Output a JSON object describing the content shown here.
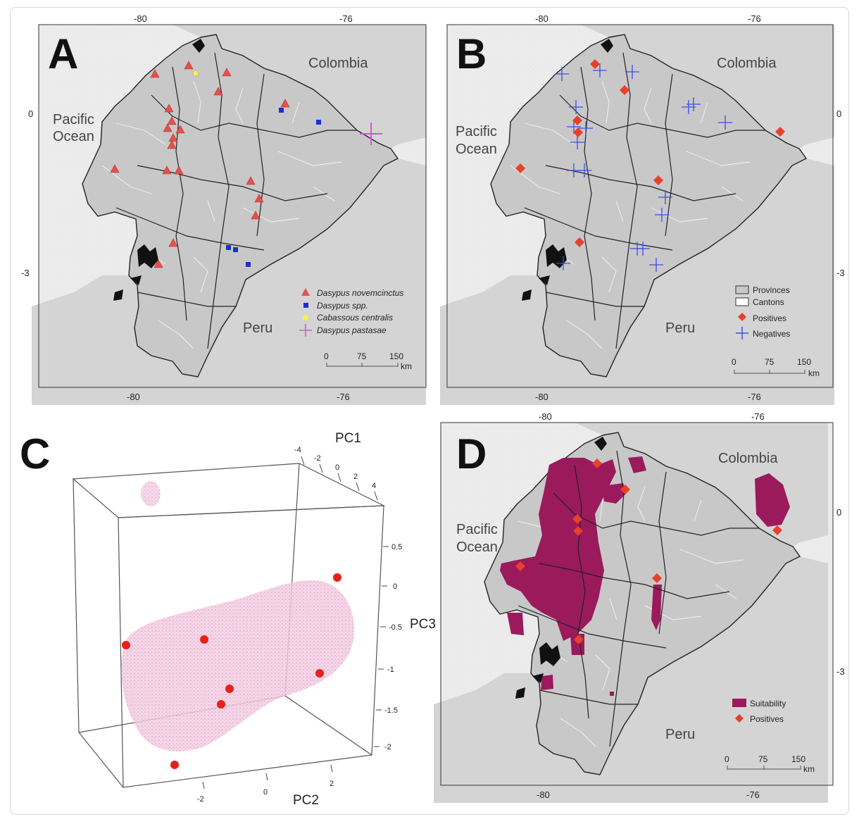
{
  "panels": {
    "A": {
      "letter": "A",
      "ticks_top": [
        "-80",
        "-76"
      ],
      "ticks_bottom": [
        "-80",
        "-76"
      ],
      "ticks_right": [
        "0",
        "-3"
      ],
      "places": {
        "colombia": "Colombia",
        "pacific1": "Pacific",
        "pacific2": "Ocean",
        "peru": "Peru"
      },
      "legend": [
        {
          "label": "Dasypus novemcinctus",
          "color": "#e8504a",
          "symbol": "triangle"
        },
        {
          "label": "Dasypus spp.",
          "color": "#1a2fd8",
          "symbol": "square"
        },
        {
          "label": "Cabassous centralis",
          "color": "#f2f24a",
          "symbol": "circle"
        },
        {
          "label": "Dasypus pastasae",
          "color": "#d455d4",
          "symbol": "plus"
        }
      ],
      "scale": {
        "labels": [
          "0",
          "75",
          "150"
        ],
        "unit": "km"
      }
    },
    "B": {
      "letter": "B",
      "ticks_top": [
        "-80",
        "-76"
      ],
      "ticks_bottom": [
        "-80",
        "-76"
      ],
      "ticks_right": [
        "0",
        "-3"
      ],
      "places": {
        "colombia": "Colombia",
        "pacific1": "Pacific",
        "pacific2": "Ocean",
        "peru": "Peru"
      },
      "legend": [
        {
          "label": "Provinces",
          "symbol": "box-gray"
        },
        {
          "label": "Cantons",
          "symbol": "box-white"
        },
        {
          "label": "Positives",
          "color": "#e8402a",
          "symbol": "diamond"
        },
        {
          "label": "Negatives",
          "color": "#3a4ee8",
          "symbol": "plus"
        }
      ],
      "scale": {
        "labels": [
          "0",
          "75",
          "150"
        ],
        "unit": "km"
      }
    },
    "C": {
      "letter": "C",
      "pc1": "PC1",
      "pc2": "PC2",
      "pc3": "PC3",
      "pc1_ticks": [
        "-4",
        "-2",
        "0",
        "2",
        "4"
      ],
      "pc3_ticks": [
        "0.5",
        "0",
        "-0.5",
        "-1",
        "-1.5",
        "-2"
      ],
      "pc2_ticks": [
        "-2",
        "0",
        "2"
      ]
    },
    "D": {
      "letter": "D",
      "ticks_top": [
        "-80",
        "-76"
      ],
      "ticks_bottom": [
        "-80",
        "-76"
      ],
      "ticks_right": [
        "0",
        "-3"
      ],
      "places": {
        "colombia": "Colombia",
        "pacific1": "Pacific",
        "pacific2": "Ocean",
        "peru": "Peru"
      },
      "legend": [
        {
          "label": "Suitability",
          "color": "#9a1a5c",
          "symbol": "box"
        },
        {
          "label": "Positives",
          "color": "#e8402a",
          "symbol": "diamond"
        }
      ],
      "scale": {
        "labels": [
          "0",
          "75",
          "150"
        ],
        "unit": "km"
      }
    }
  },
  "colors": {
    "land": "#c8c8c8",
    "sea": "#ececec",
    "suitability": "#9a1a5c",
    "positive": "#e8402a",
    "cloud": "#e8b4d4"
  }
}
